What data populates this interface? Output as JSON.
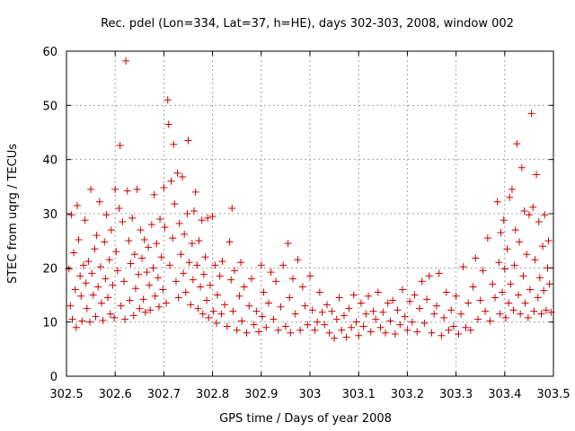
{
  "chart_data": {
    "type": "scatter",
    "title": "Rec. pdel (Lon=334, Lat=37, h=HE), days 302-303, 2008, window 002",
    "xlabel": "GPS time / Days of year 2008",
    "ylabel": "STEC from uqrg / TECUs",
    "xlim": [
      302.5,
      303.5
    ],
    "ylim": [
      0,
      60
    ],
    "xticks": [
      "302.5",
      "302.6",
      "302.7",
      "302.8",
      "302.9",
      "303",
      "303.1",
      "303.2",
      "303.3",
      "303.4",
      "303.5"
    ],
    "yticks": [
      "0",
      "10",
      "20",
      "30",
      "40",
      "50",
      "60"
    ],
    "grid": true,
    "marker": "+",
    "color": "#cc0000",
    "points": [
      [
        302.505,
        19.8
      ],
      [
        302.508,
        13.0
      ],
      [
        302.51,
        29.8
      ],
      [
        302.512,
        10.5
      ],
      [
        302.515,
        22.8
      ],
      [
        302.518,
        16.0
      ],
      [
        302.52,
        9.0
      ],
      [
        302.522,
        31.5
      ],
      [
        302.525,
        25.2
      ],
      [
        302.528,
        18.5
      ],
      [
        302.53,
        14.8
      ],
      [
        302.532,
        10.2
      ],
      [
        302.535,
        20.5
      ],
      [
        302.538,
        28.8
      ],
      [
        302.54,
        17.2
      ],
      [
        302.542,
        12.5
      ],
      [
        302.545,
        21.2
      ],
      [
        302.548,
        10.0
      ],
      [
        302.55,
        34.5
      ],
      [
        302.552,
        19.0
      ],
      [
        302.555,
        15.0
      ],
      [
        302.558,
        23.5
      ],
      [
        302.56,
        11.0
      ],
      [
        302.562,
        26.0
      ],
      [
        302.565,
        16.5
      ],
      [
        302.568,
        32.2
      ],
      [
        302.57,
        20.2
      ],
      [
        302.572,
        13.5
      ],
      [
        302.575,
        10.3
      ],
      [
        302.578,
        24.8
      ],
      [
        302.58,
        18.0
      ],
      [
        302.582,
        29.8
      ],
      [
        302.585,
        14.5
      ],
      [
        302.588,
        21.5
      ],
      [
        302.59,
        11.5
      ],
      [
        302.592,
        27.0
      ],
      [
        302.595,
        16.8
      ],
      [
        302.598,
        10.8
      ],
      [
        302.6,
        34.5
      ],
      [
        302.602,
        23.0
      ],
      [
        302.605,
        19.5
      ],
      [
        302.608,
        31.0
      ],
      [
        302.61,
        42.6
      ],
      [
        302.612,
        13.0
      ],
      [
        302.615,
        28.5
      ],
      [
        302.618,
        17.5
      ],
      [
        302.62,
        10.5
      ],
      [
        302.622,
        58.2
      ],
      [
        302.625,
        34.2
      ],
      [
        302.628,
        25.0
      ],
      [
        302.63,
        14.0
      ],
      [
        302.632,
        20.8
      ],
      [
        302.635,
        29.2
      ],
      [
        302.638,
        11.2
      ],
      [
        302.64,
        22.5
      ],
      [
        302.642,
        16.2
      ],
      [
        302.645,
        34.5
      ],
      [
        302.648,
        18.8
      ],
      [
        302.65,
        12.5
      ],
      [
        302.652,
        27.0
      ],
      [
        302.655,
        21.8
      ],
      [
        302.658,
        14.2
      ],
      [
        302.66,
        25.2
      ],
      [
        302.662,
        11.8
      ],
      [
        302.665,
        19.2
      ],
      [
        302.668,
        23.8
      ],
      [
        302.67,
        16.8
      ],
      [
        302.672,
        12.2
      ],
      [
        302.675,
        28.0
      ],
      [
        302.678,
        20.0
      ],
      [
        302.68,
        33.5
      ],
      [
        302.682,
        14.8
      ],
      [
        302.685,
        24.5
      ],
      [
        302.688,
        18.2
      ],
      [
        302.69,
        12.8
      ],
      [
        302.692,
        29.0
      ],
      [
        302.695,
        22.0
      ],
      [
        302.698,
        16.0
      ],
      [
        302.7,
        34.8
      ],
      [
        302.702,
        27.5
      ],
      [
        302.705,
        13.5
      ],
      [
        302.708,
        51.0
      ],
      [
        302.71,
        46.5
      ],
      [
        302.712,
        20.5
      ],
      [
        302.715,
        36.0
      ],
      [
        302.718,
        25.5
      ],
      [
        302.72,
        42.8
      ],
      [
        302.722,
        31.8
      ],
      [
        302.725,
        17.5
      ],
      [
        302.728,
        37.5
      ],
      [
        302.73,
        14.5
      ],
      [
        302.732,
        28.2
      ],
      [
        302.735,
        22.5
      ],
      [
        302.738,
        36.8
      ],
      [
        302.74,
        19.0
      ],
      [
        302.742,
        26.2
      ],
      [
        302.745,
        15.5
      ],
      [
        302.748,
        30.0
      ],
      [
        302.75,
        43.5
      ],
      [
        302.752,
        21.0
      ],
      [
        302.755,
        13.2
      ],
      [
        302.758,
        24.5
      ],
      [
        302.76,
        17.8
      ],
      [
        302.762,
        30.5
      ],
      [
        302.765,
        34.0
      ],
      [
        302.768,
        20.5
      ],
      [
        302.77,
        12.5
      ],
      [
        302.772,
        25.0
      ],
      [
        302.775,
        16.5
      ],
      [
        302.778,
        28.8
      ],
      [
        302.78,
        11.5
      ],
      [
        302.782,
        18.8
      ],
      [
        302.785,
        22.0
      ],
      [
        302.788,
        14.0
      ],
      [
        302.79,
        29.2
      ],
      [
        302.792,
        10.8
      ],
      [
        302.795,
        16.8
      ],
      [
        302.8,
        29.5
      ],
      [
        302.802,
        12.0
      ],
      [
        302.805,
        20.5
      ],
      [
        302.808,
        9.8
      ],
      [
        302.81,
        15.0
      ],
      [
        302.815,
        18.5
      ],
      [
        302.818,
        11.5
      ],
      [
        302.82,
        21.2
      ],
      [
        302.825,
        13.2
      ],
      [
        302.83,
        9.2
      ],
      [
        302.835,
        24.8
      ],
      [
        302.838,
        17.8
      ],
      [
        302.84,
        31.0
      ],
      [
        302.842,
        12.0
      ],
      [
        302.845,
        19.5
      ],
      [
        302.85,
        8.5
      ],
      [
        302.855,
        14.8
      ],
      [
        302.858,
        21.0
      ],
      [
        302.86,
        10.2
      ],
      [
        302.865,
        16.5
      ],
      [
        302.87,
        8.0
      ],
      [
        302.875,
        13.0
      ],
      [
        302.88,
        18.0
      ],
      [
        302.885,
        9.5
      ],
      [
        302.89,
        12.0
      ],
      [
        302.895,
        8.2
      ],
      [
        302.9,
        20.5
      ],
      [
        302.902,
        11.0
      ],
      [
        302.905,
        15.5
      ],
      [
        302.91,
        9.0
      ],
      [
        302.915,
        13.5
      ],
      [
        302.92,
        19.2
      ],
      [
        302.925,
        10.5
      ],
      [
        302.93,
        17.5
      ],
      [
        302.935,
        8.5
      ],
      [
        302.94,
        12.8
      ],
      [
        302.945,
        20.5
      ],
      [
        302.95,
        9.2
      ],
      [
        302.955,
        24.5
      ],
      [
        302.958,
        14.5
      ],
      [
        302.96,
        8.0
      ],
      [
        302.965,
        18.0
      ],
      [
        302.97,
        11.5
      ],
      [
        302.975,
        21.5
      ],
      [
        302.98,
        8.5
      ],
      [
        302.985,
        16.5
      ],
      [
        302.99,
        13.0
      ],
      [
        302.995,
        9.5
      ],
      [
        303.0,
        18.5
      ],
      [
        303.005,
        12.2
      ],
      [
        303.01,
        8.5
      ],
      [
        303.015,
        10.0
      ],
      [
        303.02,
        15.5
      ],
      [
        303.025,
        11.8
      ],
      [
        303.03,
        9.5
      ],
      [
        303.035,
        13.2
      ],
      [
        303.04,
        8.0
      ],
      [
        303.045,
        12.0
      ],
      [
        303.05,
        7.0
      ],
      [
        303.055,
        10.5
      ],
      [
        303.06,
        14.5
      ],
      [
        303.065,
        8.5
      ],
      [
        303.07,
        11.2
      ],
      [
        303.075,
        7.2
      ],
      [
        303.08,
        12.5
      ],
      [
        303.085,
        9.0
      ],
      [
        303.09,
        15.0
      ],
      [
        303.095,
        10.0
      ],
      [
        303.1,
        7.5
      ],
      [
        303.105,
        13.5
      ],
      [
        303.11,
        9.2
      ],
      [
        303.115,
        11.5
      ],
      [
        303.12,
        14.8
      ],
      [
        303.125,
        8.2
      ],
      [
        303.13,
        12.0
      ],
      [
        303.135,
        10.5
      ],
      [
        303.14,
        15.5
      ],
      [
        303.145,
        9.0
      ],
      [
        303.15,
        11.8
      ],
      [
        303.155,
        8.0
      ],
      [
        303.16,
        13.5
      ],
      [
        303.165,
        10.2
      ],
      [
        303.17,
        14.0
      ],
      [
        303.175,
        7.8
      ],
      [
        303.18,
        12.2
      ],
      [
        303.185,
        9.5
      ],
      [
        303.19,
        16.0
      ],
      [
        303.195,
        11.0
      ],
      [
        303.2,
        8.5
      ],
      [
        303.205,
        13.8
      ],
      [
        303.21,
        10.0
      ],
      [
        303.215,
        15.0
      ],
      [
        303.22,
        8.2
      ],
      [
        303.225,
        12.5
      ],
      [
        303.23,
        17.5
      ],
      [
        303.235,
        9.8
      ],
      [
        303.24,
        14.2
      ],
      [
        303.245,
        18.5
      ],
      [
        303.25,
        8.0
      ],
      [
        303.255,
        11.5
      ],
      [
        303.26,
        13.0
      ],
      [
        303.265,
        19.0
      ],
      [
        303.27,
        7.5
      ],
      [
        303.275,
        10.8
      ],
      [
        303.28,
        15.5
      ],
      [
        303.285,
        8.5
      ],
      [
        303.29,
        12.2
      ],
      [
        303.295,
        9.2
      ],
      [
        303.3,
        14.8
      ],
      [
        303.305,
        7.8
      ],
      [
        303.31,
        11.5
      ],
      [
        303.315,
        20.2
      ],
      [
        303.32,
        9.0
      ],
      [
        303.325,
        13.5
      ],
      [
        303.33,
        8.5
      ],
      [
        303.335,
        16.5
      ],
      [
        303.34,
        21.8
      ],
      [
        303.345,
        10.5
      ],
      [
        303.35,
        14.0
      ],
      [
        303.355,
        19.5
      ],
      [
        303.36,
        12.0
      ],
      [
        303.365,
        25.5
      ],
      [
        303.37,
        10.2
      ],
      [
        303.375,
        17.0
      ],
      [
        303.38,
        14.5
      ],
      [
        303.385,
        32.2
      ],
      [
        303.388,
        21.0
      ],
      [
        303.39,
        11.5
      ],
      [
        303.392,
        26.5
      ],
      [
        303.395,
        15.5
      ],
      [
        303.398,
        28.8
      ],
      [
        303.4,
        19.8
      ],
      [
        303.402,
        10.8
      ],
      [
        303.405,
        23.5
      ],
      [
        303.408,
        13.5
      ],
      [
        303.41,
        33.0
      ],
      [
        303.412,
        17.0
      ],
      [
        303.415,
        34.5
      ],
      [
        303.418,
        12.2
      ],
      [
        303.42,
        20.5
      ],
      [
        303.422,
        27.0
      ],
      [
        303.425,
        42.9
      ],
      [
        303.428,
        15.0
      ],
      [
        303.43,
        24.8
      ],
      [
        303.432,
        11.5
      ],
      [
        303.435,
        38.5
      ],
      [
        303.438,
        18.5
      ],
      [
        303.44,
        30.5
      ],
      [
        303.442,
        13.5
      ],
      [
        303.445,
        22.5
      ],
      [
        303.448,
        10.8
      ],
      [
        303.45,
        29.8
      ],
      [
        303.452,
        16.0
      ],
      [
        303.455,
        48.5
      ],
      [
        303.458,
        31.2
      ],
      [
        303.46,
        12.0
      ],
      [
        303.462,
        21.5
      ],
      [
        303.465,
        37.2
      ],
      [
        303.468,
        14.5
      ],
      [
        303.47,
        28.5
      ],
      [
        303.472,
        18.2
      ],
      [
        303.475,
        11.5
      ],
      [
        303.478,
        24.0
      ],
      [
        303.48,
        15.8
      ],
      [
        303.482,
        29.8
      ],
      [
        303.485,
        12.2
      ],
      [
        303.488,
        20.0
      ],
      [
        303.49,
        25.0
      ],
      [
        303.492,
        17.0
      ],
      [
        303.495,
        11.8
      ]
    ]
  }
}
